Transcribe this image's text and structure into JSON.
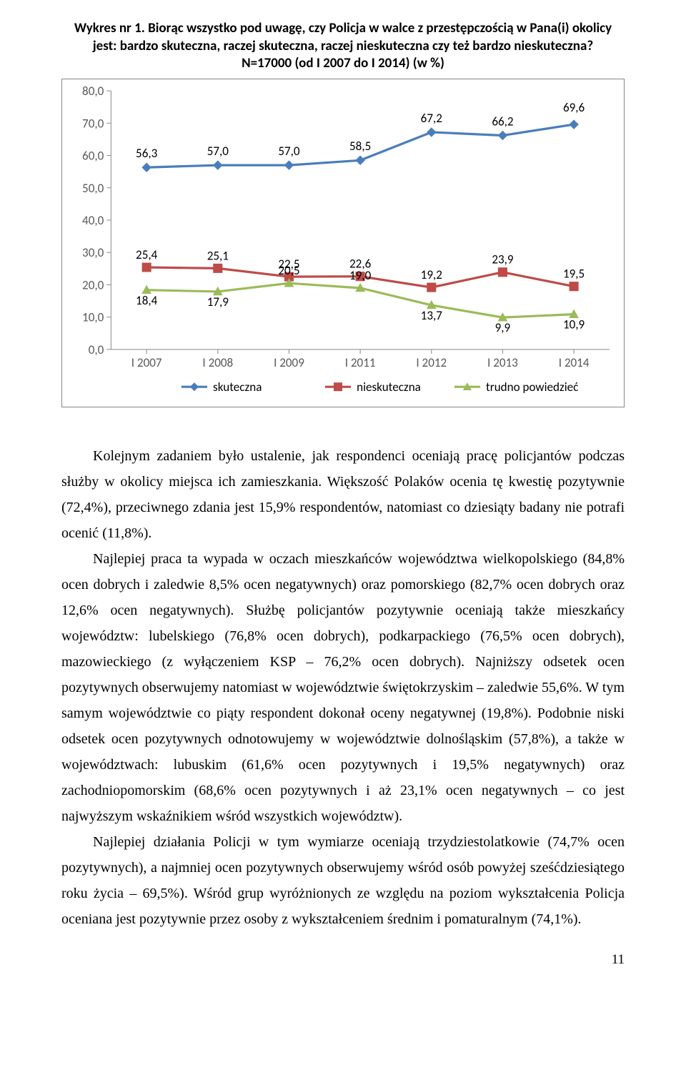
{
  "chart": {
    "type": "line",
    "title_lines": [
      "Wykres nr 1. Biorąc wszystko pod uwagę, czy Policja w walce z przestępczością w Pana(i) okolicy",
      "jest: bardzo skuteczna, raczej skuteczna, raczej nieskuteczna czy też bardzo nieskuteczna?",
      "N=17000  (od I 2007 do I 2014) (w %)"
    ],
    "categories": [
      "I 2007",
      "I 2008",
      "I 2009",
      "I 2011",
      "I 2012",
      "I 2013",
      "I 2014"
    ],
    "ylim": [
      0,
      80
    ],
    "ytick_step": 10,
    "series": [
      {
        "name": "skuteczna",
        "color": "#4a7ebb",
        "marker": "diamond",
        "values": [
          56.3,
          57.0,
          57.0,
          58.5,
          67.2,
          66.2,
          69.6
        ]
      },
      {
        "name": "nieskuteczna",
        "color": "#be4b48",
        "marker": "square",
        "values": [
          25.4,
          25.1,
          22.5,
          22.6,
          19.2,
          23.9,
          19.5
        ]
      },
      {
        "name": "trudno powiedzieć",
        "color": "#9bbb59",
        "marker": "triangle",
        "values": [
          18.4,
          17.9,
          20.5,
          19.0,
          13.7,
          9.9,
          10.9
        ]
      }
    ],
    "label_fontsize": 17,
    "line_width": 3.2,
    "marker_size": 6,
    "background_color": "#ffffff",
    "axis_color": "#888888",
    "tick_color": "#888888"
  },
  "paragraphs": [
    "Kolejnym zadaniem było ustalenie, jak respondenci oceniają pracę policjantów podczas służby w okolicy miejsca ich zamieszkania. Większość Polaków ocenia tę kwestię pozytywnie (72,4%), przeciwnego zdania jest 15,9% respondentów, natomiast co dziesiąty badany nie potrafi ocenić (11,8%).",
    "Najlepiej praca ta wypada w oczach mieszkańców województwa wielkopolskiego (84,8% ocen dobrych i zaledwie 8,5% ocen negatywnych) oraz pomorskiego (82,7% ocen dobrych oraz 12,6% ocen negatywnych). Służbę policjantów pozytywnie oceniają także mieszkańcy województw: lubelskiego (76,8% ocen dobrych), podkarpackiego (76,5% ocen dobrych), mazowieckiego (z wyłączeniem KSP – 76,2% ocen dobrych). Najniższy odsetek ocen pozytywnych obserwujemy natomiast w województwie świętokrzyskim – zaledwie 55,6%. W tym samym województwie co piąty respondent dokonał oceny negatywnej (19,8%). Podobnie niski odsetek ocen pozytywnych odnotowujemy w województwie dolnośląskim (57,8%), a także w województwach: lubuskim (61,6% ocen pozytywnych i 19,5% negatywnych) oraz zachodniopomorskim (68,6% ocen pozytywnych i aż 23,1% ocen negatywnych – co jest najwyższym wskaźnikiem wśród wszystkich województw).",
    "Najlepiej działania Policji w tym wymiarze oceniają trzydziestolatkowie (74,7% ocen pozytywnych), a najmniej ocen pozytywnych obserwujemy wśród osób powyżej sześćdziesiątego roku życia – 69,5%). Wśród grup wyróżnionych ze względu na poziom wykształcenia Policja oceniana jest pozytywnie przez osoby z wykształceniem średnim i pomaturalnym (74,1%)."
  ],
  "page_number": "11"
}
